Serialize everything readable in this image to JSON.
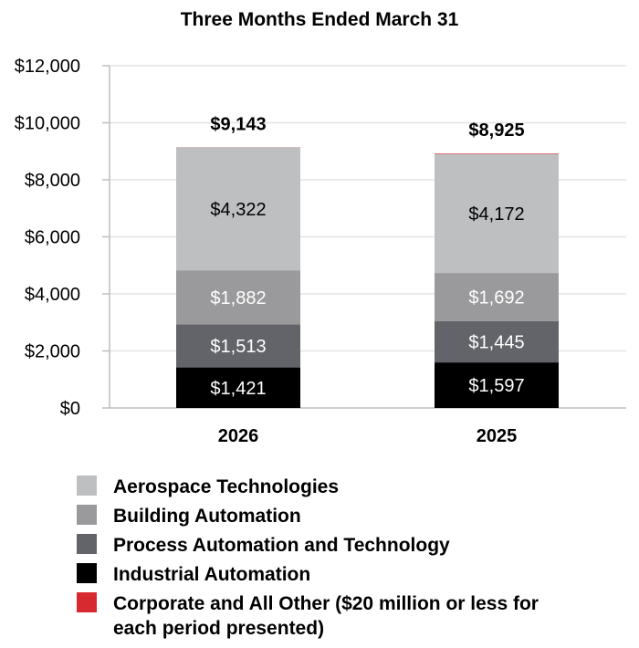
{
  "chart_data": {
    "type": "bar",
    "stacked": true,
    "title": "Three Months Ended March 31",
    "categories": [
      "2026",
      "2025"
    ],
    "ylim": [
      0,
      12000
    ],
    "yticks": [
      0,
      2000,
      4000,
      6000,
      8000,
      10000,
      12000
    ],
    "ytick_labels": [
      "$0",
      "$2,000",
      "$4,000",
      "$6,000",
      "$8,000",
      "$10,000",
      "$12,000"
    ],
    "grid": true,
    "series": [
      {
        "name": "Industrial Automation",
        "color": "#000000",
        "label_color": "#ffffff",
        "values": [
          1421,
          1597
        ],
        "labels": [
          "$1,421",
          "$1,597"
        ]
      },
      {
        "name": "Process Automation and Technology",
        "color": "#626469",
        "label_color": "#ffffff",
        "values": [
          1513,
          1445
        ],
        "labels": [
          "$1,513",
          "$1,445"
        ]
      },
      {
        "name": "Building Automation",
        "color": "#9a9a9c",
        "label_color": "#ffffff",
        "values": [
          1882,
          1692
        ],
        "labels": [
          "$1,882",
          "$1,692"
        ]
      },
      {
        "name": "Aerospace Technologies",
        "color": "#bebfc1",
        "label_color": "#000000",
        "values": [
          4322,
          4172
        ],
        "labels": [
          "$4,322",
          "$4,172"
        ]
      },
      {
        "name": "Corporate and All Other ($20 million or less for each period presented)",
        "color": "#d72a30",
        "label_color": "#ffffff",
        "values": [
          5,
          19
        ],
        "labels": [
          "",
          ""
        ]
      }
    ],
    "totals": [
      9143,
      8925
    ],
    "total_labels": [
      "$9,143",
      "$8,925"
    ]
  },
  "legend": [
    {
      "label": "Aerospace Technologies",
      "color": "#bebfc1"
    },
    {
      "label": "Building Automation",
      "color": "#9a9a9c"
    },
    {
      "label": "Process Automation and Technology",
      "color": "#626469"
    },
    {
      "label": "Industrial Automation",
      "color": "#000000"
    },
    {
      "label": "Corporate and All Other ($20 million or less for each period presented)",
      "color": "#d72a30"
    }
  ]
}
